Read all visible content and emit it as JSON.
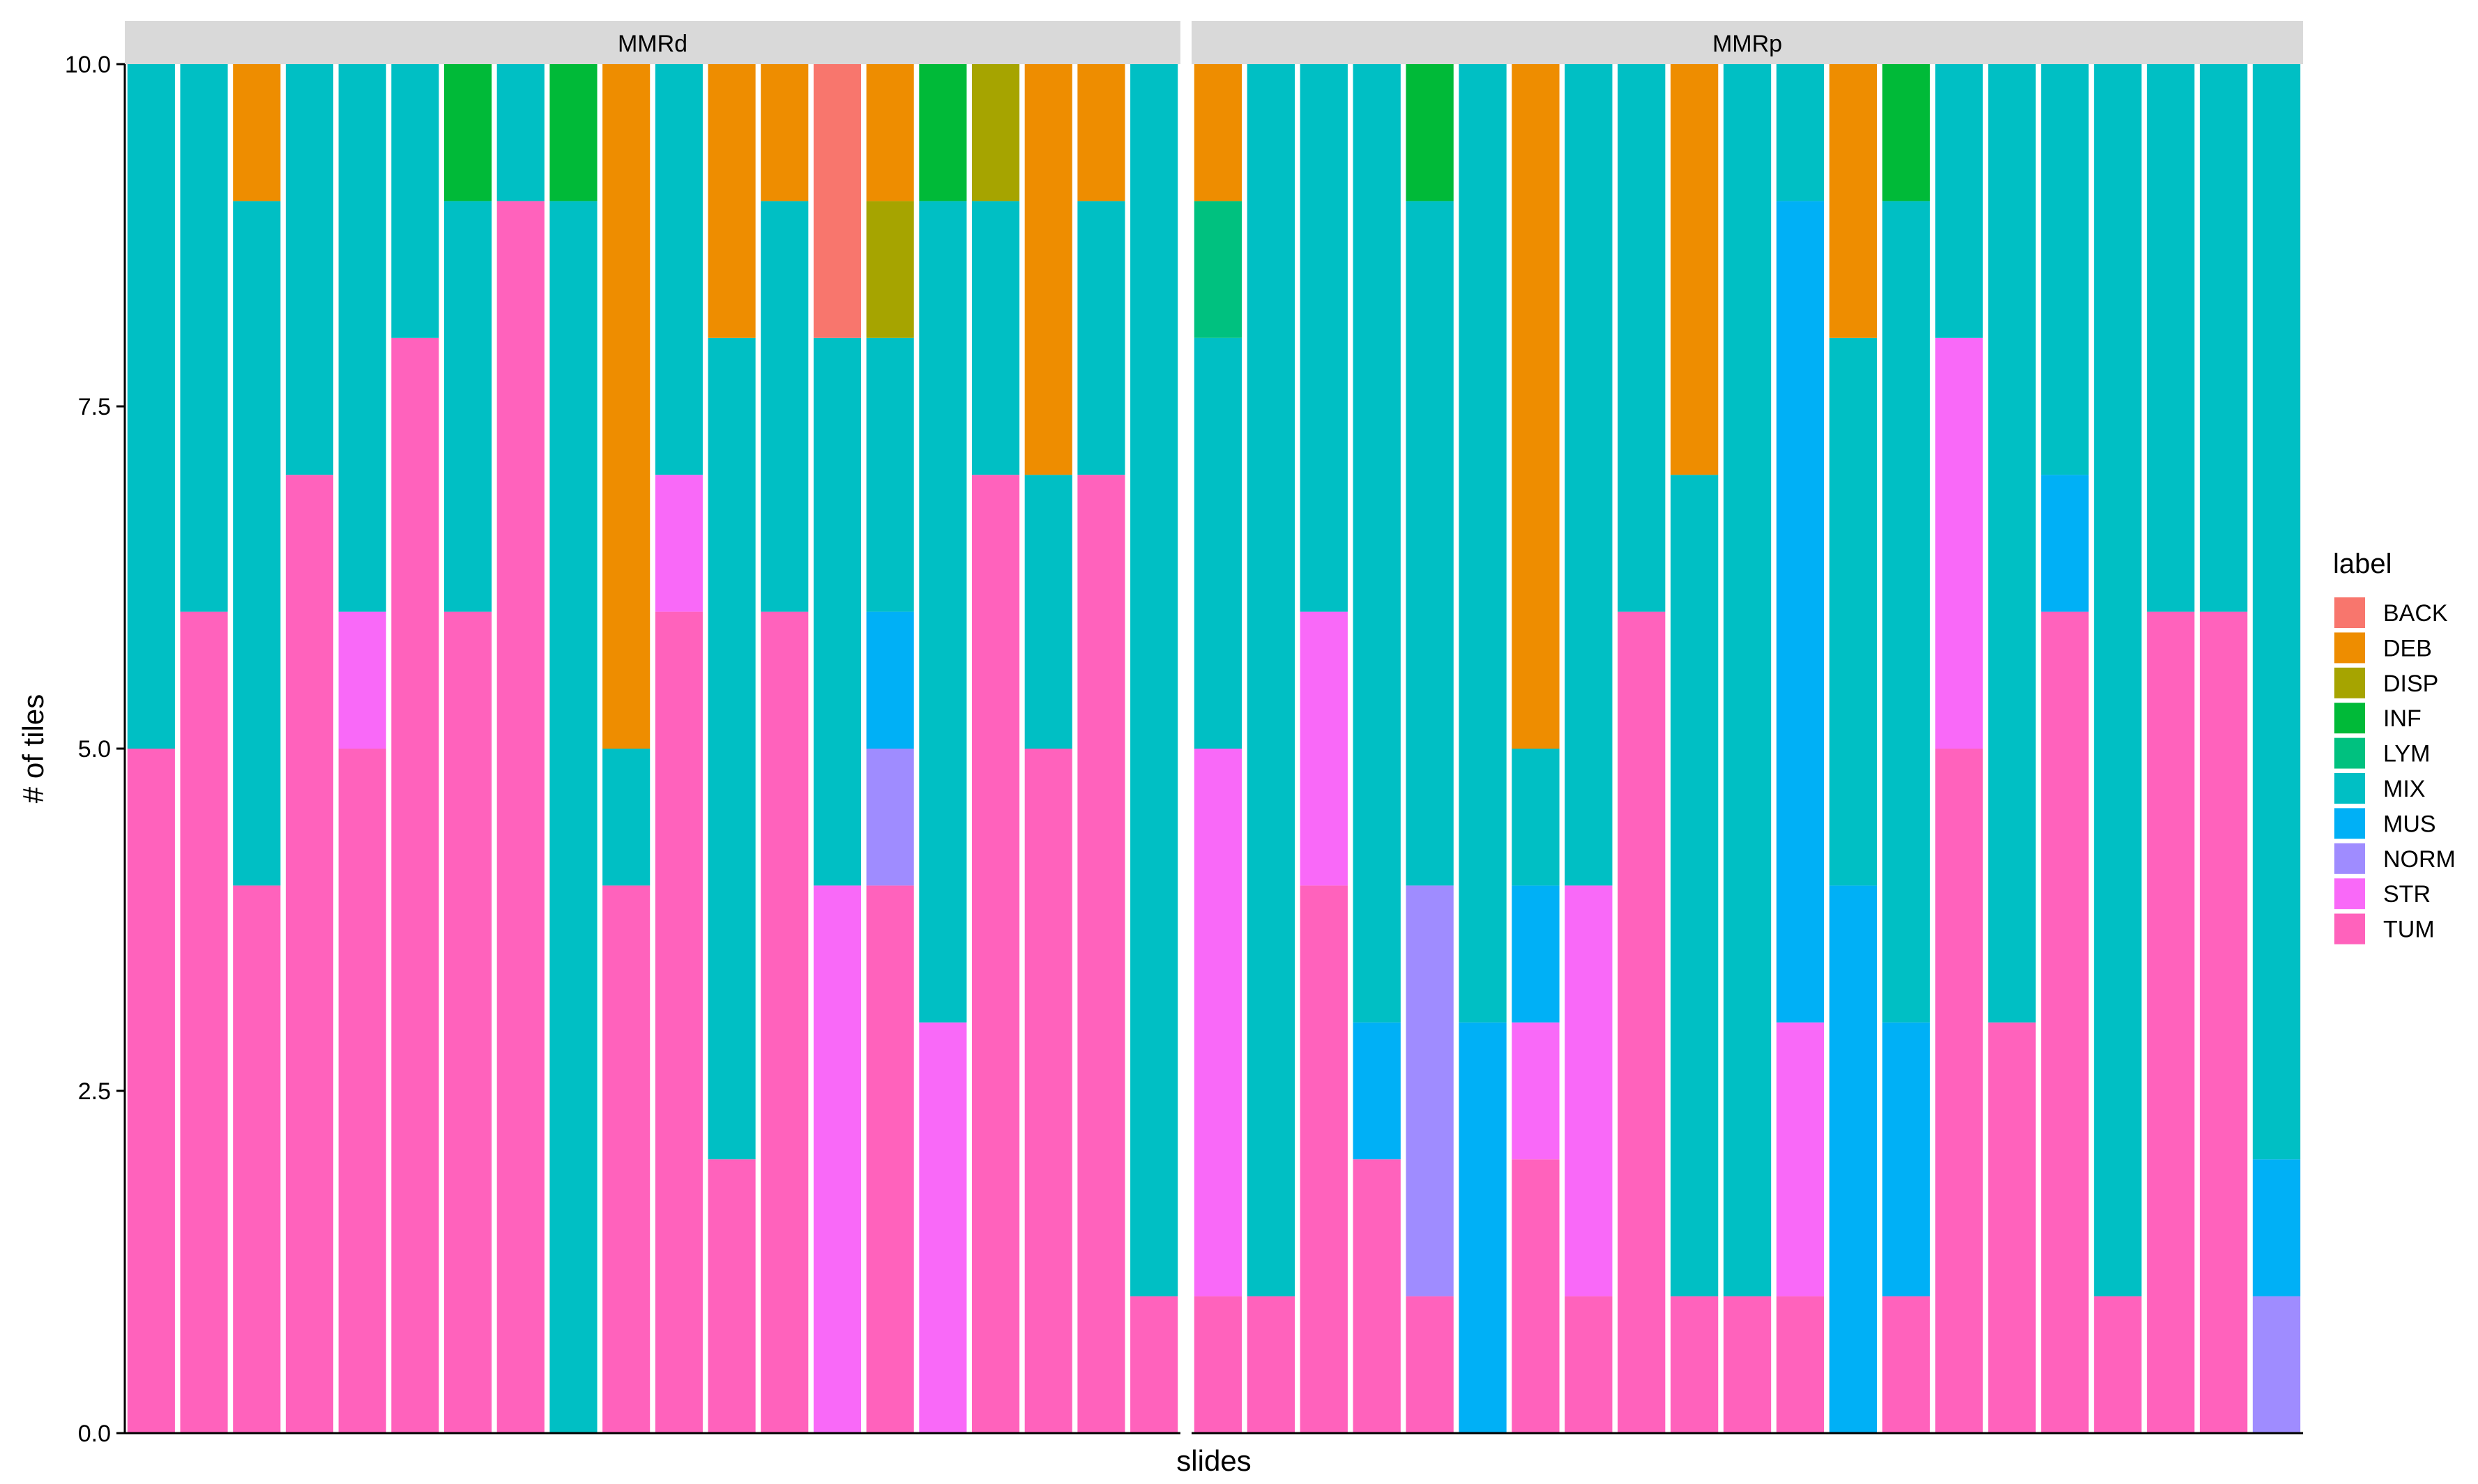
{
  "chart_data": {
    "type": "bar",
    "stacked": true,
    "xlabel": "slides",
    "ylabel": "# of tiles",
    "ylim": [
      0,
      10
    ],
    "y_ticks": [
      "0.0",
      "2.5",
      "5.0",
      "7.5",
      "10.0"
    ],
    "legend": {
      "title": "label",
      "position": "right",
      "entries": [
        "BACK",
        "DEB",
        "DISP",
        "INF",
        "LYM",
        "MIX",
        "MUS",
        "NORM",
        "STR",
        "TUM"
      ]
    },
    "colors": {
      "BACK": "#F8766D",
      "DEB": "#EE8D00",
      "DISP": "#A6A400",
      "INF": "#00BA38",
      "LYM": "#00C17F",
      "MIX": "#00BFC4",
      "MUS": "#00B0F6",
      "NORM": "#9F8CFF",
      "STR": "#F969F8",
      "TUM": "#FF62BC"
    },
    "panels": [
      {
        "name": "MMRd",
        "bars": [
          {
            "TUM": 5,
            "MIX": 5
          },
          {
            "TUM": 6,
            "MIX": 4
          },
          {
            "TUM": 4,
            "MIX": 5,
            "DEB": 1
          },
          {
            "TUM": 7,
            "MIX": 3
          },
          {
            "TUM": 5,
            "STR": 1,
            "MIX": 4
          },
          {
            "TUM": 8,
            "MIX": 2
          },
          {
            "TUM": 6,
            "MIX": 3,
            "INF": 1
          },
          {
            "TUM": 9,
            "MIX": 1
          },
          {
            "MIX": 9,
            "INF": 1
          },
          {
            "TUM": 4,
            "MIX": 1,
            "DEB": 5
          },
          {
            "TUM": 6,
            "STR": 1,
            "MIX": 3
          },
          {
            "TUM": 2,
            "MIX": 6,
            "DEB": 2
          },
          {
            "TUM": 6,
            "MIX": 3,
            "DEB": 1
          },
          {
            "STR": 4,
            "MIX": 4,
            "BACK": 2
          },
          {
            "TUM": 4,
            "NORM": 1,
            "MUS": 1,
            "MIX": 2,
            "DISP": 1,
            "DEB": 1
          },
          {
            "STR": 3,
            "MIX": 6,
            "INF": 1
          },
          {
            "TUM": 7,
            "MIX": 2,
            "DISP": 1
          },
          {
            "TUM": 5,
            "MIX": 2,
            "DEB": 3
          },
          {
            "TUM": 7,
            "MIX": 2,
            "DEB": 1
          },
          {
            "TUM": 1,
            "MIX": 9
          }
        ]
      },
      {
        "name": "MMRp",
        "bars": [
          {
            "TUM": 1,
            "STR": 4,
            "MIX": 3,
            "LYM": 1,
            "DEB": 1
          },
          {
            "TUM": 1,
            "MIX": 9
          },
          {
            "TUM": 4,
            "STR": 2,
            "MIX": 4
          },
          {
            "TUM": 2,
            "MUS": 1,
            "MIX": 7
          },
          {
            "TUM": 1,
            "NORM": 3,
            "MIX": 5,
            "INF": 1
          },
          {
            "MUS": 3,
            "MIX": 7
          },
          {
            "TUM": 2,
            "STR": 1,
            "MUS": 1,
            "MIX": 1,
            "DEB": 5
          },
          {
            "TUM": 1,
            "STR": 3,
            "MIX": 6
          },
          {
            "TUM": 6,
            "MIX": 4
          },
          {
            "TUM": 1,
            "MIX": 6,
            "DEB": 3
          },
          {
            "TUM": 1,
            "MIX": 9
          },
          {
            "TUM": 1,
            "STR": 2,
            "MUS": 6,
            "MIX": 1
          },
          {
            "MUS": 4,
            "MIX": 4,
            "DEB": 2
          },
          {
            "TUM": 1,
            "MUS": 2,
            "MIX": 6,
            "INF": 1
          },
          {
            "TUM": 5,
            "STR": 3,
            "MIX": 2
          },
          {
            "TUM": 3,
            "MIX": 7
          },
          {
            "TUM": 6,
            "MUS": 1,
            "MIX": 3
          },
          {
            "TUM": 1,
            "MIX": 9
          },
          {
            "TUM": 6,
            "MIX": 4
          },
          {
            "TUM": 6,
            "MIX": 4
          },
          {
            "NORM": 1,
            "MUS": 1,
            "MIX": 8
          }
        ]
      }
    ]
  }
}
